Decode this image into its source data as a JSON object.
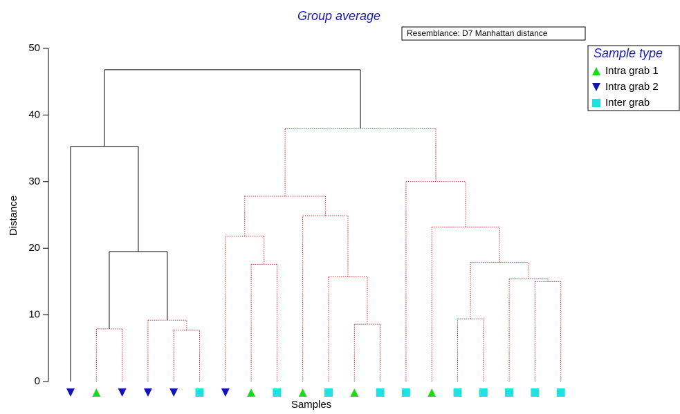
{
  "chart_data": {
    "type": "dendrogram",
    "title": "Group average",
    "subtitle": "Resemblance: D7 Manhattan distance",
    "y_label": "Distance",
    "x_label": "Samples",
    "ylim": [
      0,
      50
    ],
    "yticks": [
      0,
      10,
      20,
      30,
      40,
      50
    ],
    "legend_title": "Sample type",
    "legend": "upper right",
    "groups": [
      {
        "name": "Intra grab 1",
        "color": "#1ed81e",
        "marker": "triangle-up"
      },
      {
        "name": "Intra grab 2",
        "color": "#1414b4",
        "marker": "triangle-down"
      },
      {
        "name": "Inter grab",
        "color": "#22e0e0",
        "marker": "square"
      }
    ],
    "tree": {
      "height": 46.8,
      "color": "#000000",
      "style": "solid",
      "children": [
        {
          "height": 35.3,
          "color": "#000000",
          "style": "solid",
          "children": [
            {
              "group": 1
            },
            {
              "height": 19.5,
              "color": "#000000",
              "style": "solid",
              "children": [
                {
                  "height": 7.9,
                  "color": "#d03030",
                  "style": "dotted",
                  "children": [
                    {
                      "group": 0
                    },
                    {
                      "group": 1
                    }
                  ]
                },
                {
                  "height": 9.2,
                  "color": "#d03030",
                  "style": "dotted",
                  "children": [
                    {
                      "group": 1
                    },
                    {
                      "height": 7.7,
                      "color": "#d03030",
                      "style": "dotted",
                      "children": [
                        {
                          "group": 1
                        },
                        {
                          "group": 2
                        }
                      ]
                    }
                  ]
                }
              ]
            }
          ]
        },
        {
          "height": 38.0,
          "color": "#d03030",
          "style": "dotted",
          "children": [
            {
              "height": 27.8,
              "color": "#d03030",
              "style": "dotted",
              "children": [
                {
                  "height": 21.8,
                  "color": "#d03030",
                  "style": "dotted",
                  "children": [
                    {
                      "group": 1
                    },
                    {
                      "height": 17.6,
                      "color": "#d03030",
                      "style": "dotted",
                      "children": [
                        {
                          "group": 0
                        },
                        {
                          "group": 2
                        }
                      ]
                    }
                  ]
                },
                {
                  "height": 24.9,
                  "color": "#d03030",
                  "style": "dotted",
                  "children": [
                    {
                      "group": 0
                    },
                    {
                      "height": 15.7,
                      "color": "#d03030",
                      "style": "dotted",
                      "children": [
                        {
                          "group": 2
                        },
                        {
                          "height": 8.6,
                          "color": "#d03030",
                          "style": "dotted",
                          "children": [
                            {
                              "group": 0
                            },
                            {
                              "group": 2
                            }
                          ]
                        }
                      ]
                    }
                  ]
                }
              ]
            },
            {
              "height": 30.0,
              "color": "#d03030",
              "style": "dotted",
              "children": [
                {
                  "group": 2
                },
                {
                  "height": 23.2,
                  "color": "#d03030",
                  "style": "dotted",
                  "children": [
                    {
                      "group": 0
                    },
                    {
                      "height": 17.9,
                      "color": "#d03030",
                      "style": "dotted",
                      "children": [
                        {
                          "height": 9.4,
                          "color": "#d03030",
                          "style": "dotted",
                          "children": [
                            {
                              "group": 2
                            },
                            {
                              "group": 2
                            }
                          ]
                        },
                        {
                          "height": 15.4,
                          "color": "#d03030",
                          "style": "dotted",
                          "children": [
                            {
                              "group": 2
                            },
                            {
                              "height": 15.0,
                              "color": "#d03030",
                              "style": "dotted",
                              "children": [
                                {
                                  "group": 2
                                },
                                {
                                  "group": 2
                                }
                              ]
                            }
                          ]
                        }
                      ]
                    }
                  ]
                }
              ]
            }
          ]
        }
      ]
    }
  }
}
